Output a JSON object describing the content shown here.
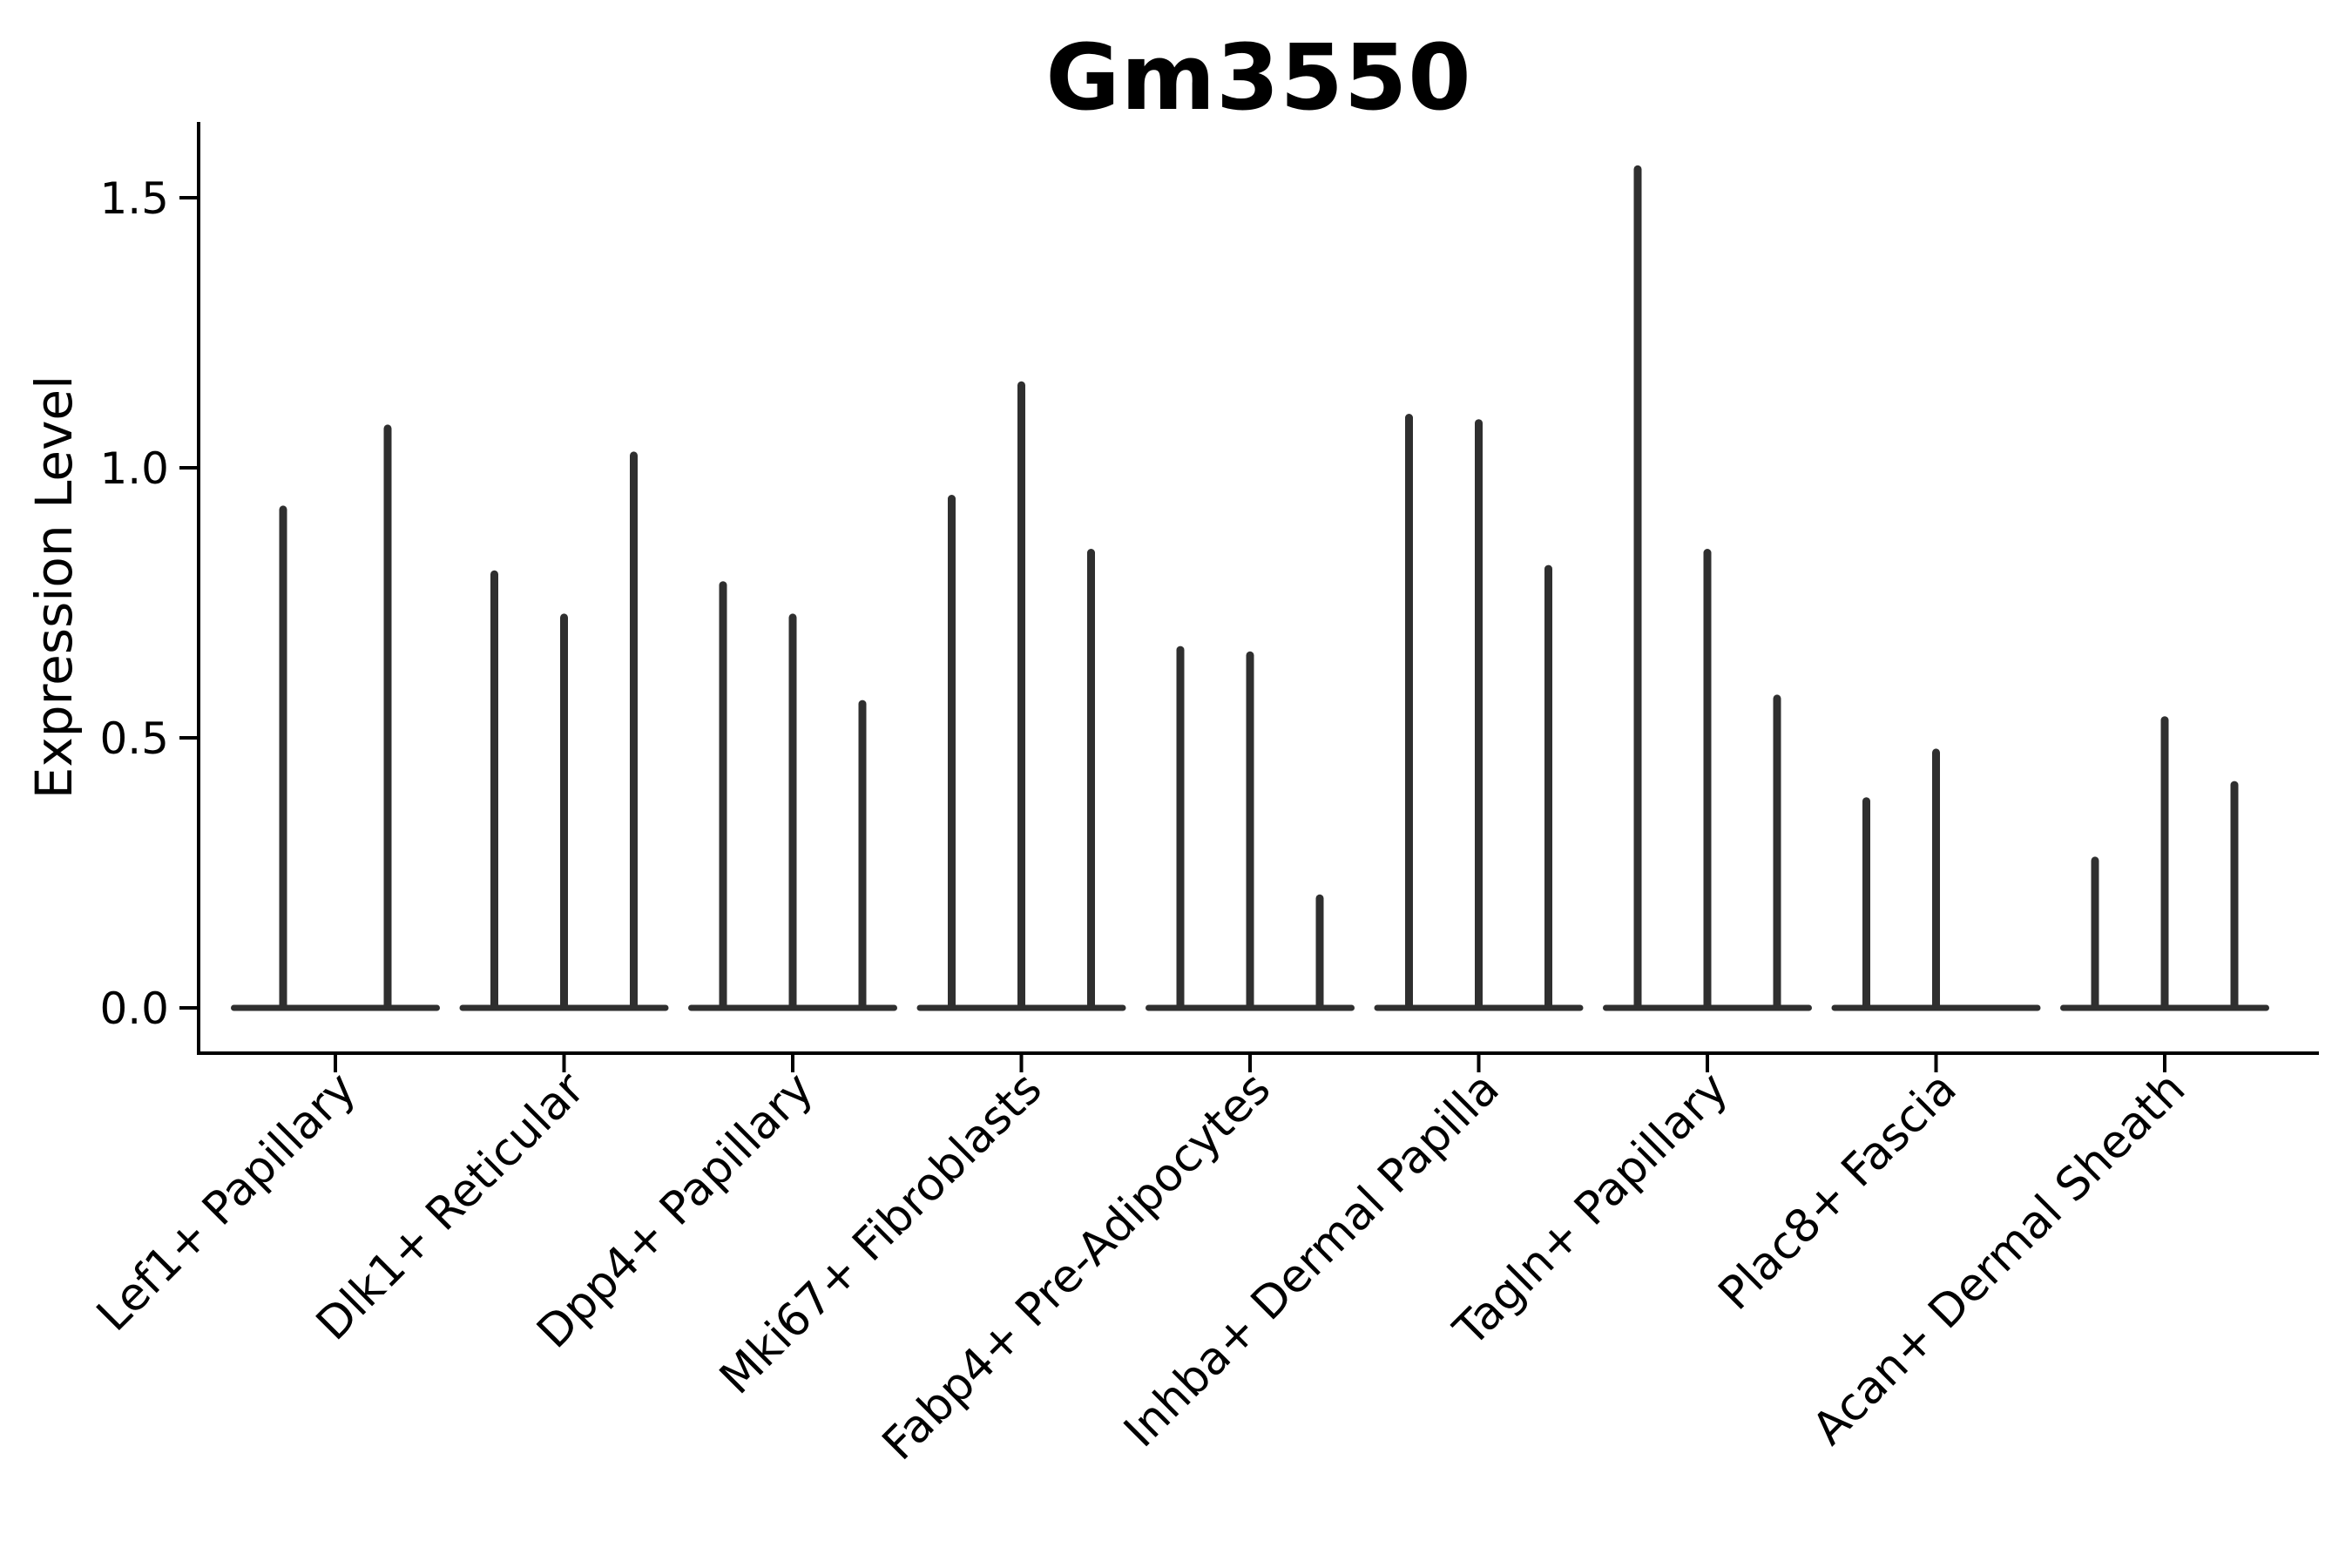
{
  "chart_data": {
    "type": "violin",
    "title": "Gm3550",
    "xlabel": "",
    "ylabel": "Expression Level",
    "yticks": [
      "0.0",
      "0.5",
      "1.0",
      "1.5"
    ],
    "ylim": [
      0.0,
      1.64
    ],
    "grid": false,
    "legend": null,
    "categories": [
      "Lef1+ Papillary",
      "Dlk1+ Reticular",
      "Dpp4+ Papillary",
      "Mki67+ Fibroblasts",
      "Fabp4+ Pre-Adipocytes",
      "Inhba+ Dermal Papilla",
      "Tagln+ Papillary",
      "Plac8+ Fascia",
      "Acan+ Dermal Sheath"
    ],
    "groups": [
      {
        "label": "Lef1+ Papillary",
        "violin_peaks": [
          0.93,
          1.08
        ]
      },
      {
        "label": "Dlk1+ Reticular",
        "violin_peaks": [
          0.81,
          0.73,
          1.03
        ]
      },
      {
        "label": "Dpp4+ Papillary",
        "violin_peaks": [
          0.79,
          0.73,
          0.57
        ]
      },
      {
        "label": "Mki67+ Fibroblasts",
        "violin_peaks": [
          0.95,
          1.16,
          0.85
        ]
      },
      {
        "label": "Fabp4+ Pre-Adipocytes",
        "violin_peaks": [
          0.67,
          0.66,
          0.21
        ]
      },
      {
        "label": "Inhba+ Dermal Papilla",
        "violin_peaks": [
          1.1,
          1.09,
          0.82
        ]
      },
      {
        "label": "Tagln+ Papillary",
        "violin_peaks": [
          1.56,
          0.85,
          0.58
        ]
      },
      {
        "label": "Plac8+ Fascia",
        "violin_peaks": [
          0.39,
          0.48,
          0.0
        ]
      },
      {
        "label": "Acan+ Dermal Sheath",
        "violin_peaks": [
          0.28,
          0.54,
          0.42
        ]
      }
    ],
    "colors": {
      "violin": "#2f2f2f",
      "axis": "#000000",
      "tick_label": "#000000",
      "background": "#ffffff"
    }
  }
}
